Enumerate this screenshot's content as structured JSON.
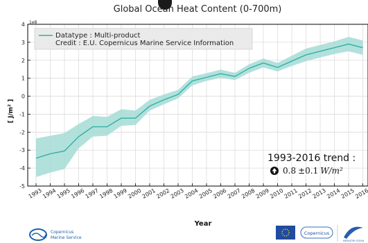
{
  "chart_data": {
    "type": "area",
    "title": "Global Ocean Heat Content (0-700m)",
    "xlabel": "Year",
    "ylabel": "[ J/m² ]",
    "y_exponent": "1e8",
    "ylim": [
      -5,
      4
    ],
    "yticks": [
      "4",
      "3",
      "2",
      "1",
      "0",
      "-1",
      "-2",
      "-3",
      "-4",
      "-5"
    ],
    "x": [
      1993,
      1994,
      1995,
      1996,
      1997,
      1998,
      1999,
      2000,
      2001,
      2002,
      2003,
      2004,
      2005,
      2006,
      2007,
      2008,
      2009,
      2010,
      2011,
      2012,
      2013,
      2014,
      2015,
      2016
    ],
    "xtick_labels": [
      "1993",
      "1994",
      "1995",
      "1996",
      "1997",
      "1998",
      "1999",
      "2000",
      "2001",
      "2002",
      "2003",
      "2004",
      "2005",
      "2006",
      "2007",
      "2008",
      "2009",
      "2010",
      "2011",
      "2012",
      "2013",
      "2014",
      "2015",
      "2016"
    ],
    "series": [
      {
        "name": "Datatype : Multi-product",
        "values": [
          -3.45,
          -3.2,
          -3.05,
          -2.25,
          -1.7,
          -1.7,
          -1.22,
          -1.22,
          -0.55,
          -0.2,
          0.1,
          0.85,
          1.05,
          1.25,
          1.1,
          1.55,
          1.85,
          1.6,
          1.95,
          2.3,
          2.5,
          2.7,
          2.9,
          2.7
        ],
        "lower": [
          -4.5,
          -4.25,
          -4.05,
          -2.9,
          -2.25,
          -2.2,
          -1.65,
          -1.6,
          -0.8,
          -0.45,
          -0.12,
          0.6,
          0.85,
          1.02,
          0.9,
          1.3,
          1.6,
          1.38,
          1.68,
          1.95,
          2.15,
          2.35,
          2.5,
          2.3
        ],
        "upper": [
          -2.35,
          -2.2,
          -2.05,
          -1.55,
          -1.1,
          -1.15,
          -0.72,
          -0.8,
          -0.2,
          0.1,
          0.35,
          1.1,
          1.28,
          1.48,
          1.3,
          1.78,
          2.1,
          1.85,
          2.25,
          2.65,
          2.85,
          3.05,
          3.3,
          3.1
        ]
      }
    ],
    "legend": {
      "entry1": "Datatype : Multi-product",
      "entry2": "Credit : E.U. Copernicus Marine Service Information",
      "position": "top-left"
    },
    "annotation": {
      "trend_title": "1993-2016 trend :",
      "trend_value": "0.8",
      "trend_pm": "±0.1",
      "trend_unit": "W/m²"
    },
    "grid": true,
    "colors": {
      "line": "#2fb0a3",
      "band": "#a5dcd6",
      "legend_bg": "#eaeaea"
    }
  },
  "footer": {
    "left_logo_line1": "Copernicus",
    "left_logo_line2": "Marine Service",
    "right_logo_text": "Copernicus",
    "right_logo_sub": "MERCATOR OCEAN"
  }
}
